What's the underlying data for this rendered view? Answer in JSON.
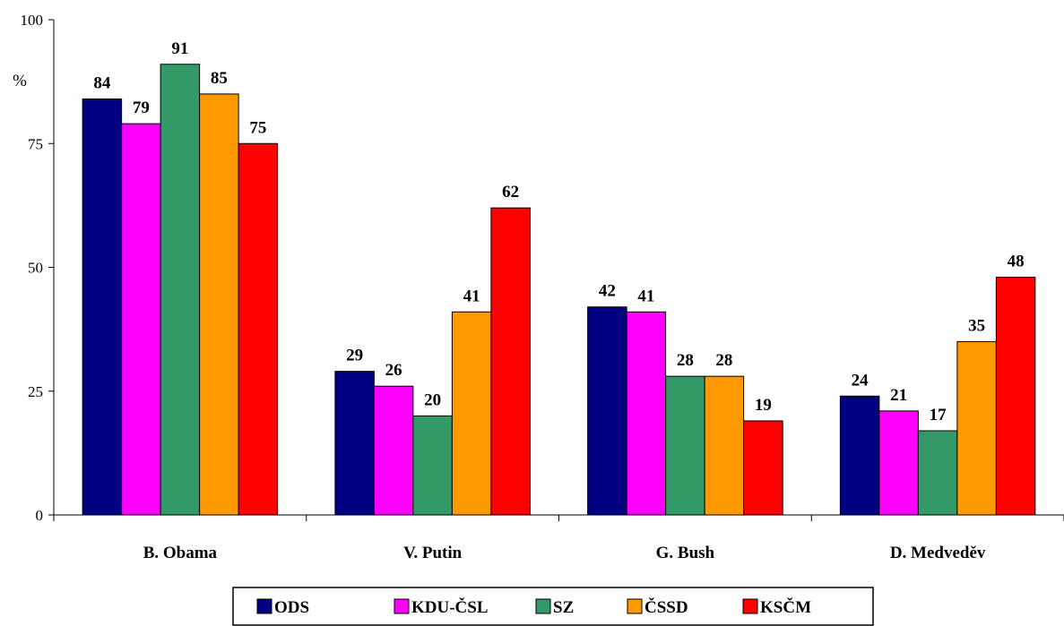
{
  "chart_data": {
    "type": "bar",
    "categories": [
      "B. Obama",
      "V. Putin",
      "G. Bush",
      "D. Medveděv"
    ],
    "series": [
      {
        "name": "ODS",
        "color": "#000080",
        "values": [
          84,
          29,
          42,
          24
        ]
      },
      {
        "name": "KDU-ČSL",
        "color": "#FF00FF",
        "values": [
          79,
          26,
          41,
          21
        ]
      },
      {
        "name": "SZ",
        "color": "#339966",
        "values": [
          91,
          20,
          28,
          17
        ]
      },
      {
        "name": "ČSSD",
        "color": "#FF9900",
        "values": [
          85,
          41,
          28,
          35
        ]
      },
      {
        "name": "KSČM",
        "color": "#FF0000",
        "values": [
          75,
          62,
          19,
          48
        ]
      }
    ],
    "ylabel": "%",
    "ylim": [
      0,
      100
    ],
    "yticks": [
      0,
      25,
      50,
      75,
      100
    ],
    "grid": false,
    "legend_position": "bottom",
    "data_labels": true
  }
}
